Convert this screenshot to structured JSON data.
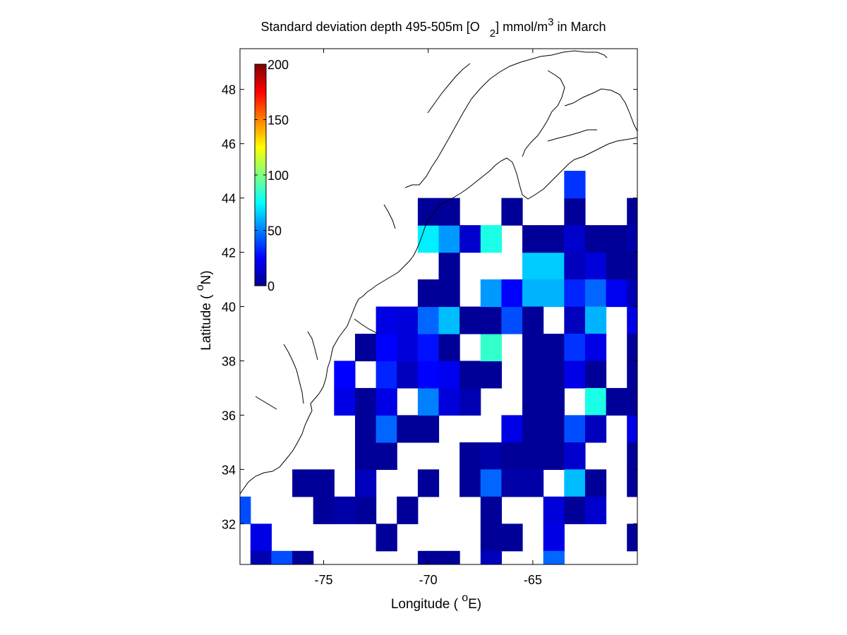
{
  "chart_data": {
    "type": "heatmap",
    "title_parts": {
      "pre": "Standard deviation depth 495-505m [O",
      "sub": "2",
      "mid": "] mmol/m",
      "sup": "3",
      "post": " in March"
    },
    "xlabel_parts": {
      "pre": "Longitude ( ",
      "sup": "o",
      "post": "E)"
    },
    "ylabel_parts": {
      "pre": "Latitude ( ",
      "sup": "o",
      "post": "N)"
    },
    "xlim": [
      -79,
      -60
    ],
    "ylim": [
      30.5,
      49.5
    ],
    "xticks": [
      -75,
      -70,
      -65
    ],
    "xtick_labels": [
      "-75",
      "-70",
      "-65"
    ],
    "yticks": [
      32,
      34,
      36,
      38,
      40,
      42,
      44,
      46,
      48
    ],
    "ytick_labels": [
      "32",
      "34",
      "36",
      "38",
      "40",
      "42",
      "44",
      "46",
      "48"
    ],
    "grid": false,
    "colorbar": {
      "colormap": "jet",
      "range": [
        0,
        200
      ],
      "ticks": [
        0,
        50,
        100,
        150,
        200
      ],
      "tick_labels": [
        "0",
        "50",
        "100",
        "150",
        "200"
      ],
      "placement": "top-left"
    },
    "cell_size_deg": 1,
    "cells": [
      [
        -79,
        32.5,
        40
      ],
      [
        -78,
        31.5,
        20
      ],
      [
        -78,
        30.5,
        10
      ],
      [
        -77,
        30.5,
        40
      ],
      [
        -76,
        30.5,
        5
      ],
      [
        -76,
        33.5,
        5
      ],
      [
        -75,
        33.5,
        5
      ],
      [
        -75,
        32.5,
        5
      ],
      [
        -74,
        32.5,
        8
      ],
      [
        -73,
        32.5,
        5
      ],
      [
        -73,
        33.5,
        12
      ],
      [
        -72,
        31.5,
        5
      ],
      [
        -71,
        32.5,
        5
      ],
      [
        -73,
        34.5,
        5
      ],
      [
        -72,
        34.5,
        5
      ],
      [
        -73,
        35.5,
        5
      ],
      [
        -72,
        35.5,
        45
      ],
      [
        -71,
        35.5,
        5
      ],
      [
        -70,
        35.5,
        5
      ],
      [
        -74,
        36.5,
        20
      ],
      [
        -73,
        36.5,
        5
      ],
      [
        -72,
        36.5,
        20
      ],
      [
        -70,
        36.5,
        50
      ],
      [
        -69,
        36.5,
        18
      ],
      [
        -68,
        36.5,
        10
      ],
      [
        -74,
        37.5,
        25
      ],
      [
        -72,
        37.5,
        32
      ],
      [
        -71,
        37.5,
        12
      ],
      [
        -70,
        37.5,
        25
      ],
      [
        -69,
        37.5,
        22
      ],
      [
        -68,
        37.5,
        5
      ],
      [
        -67,
        37.5,
        5
      ],
      [
        -73,
        38.5,
        5
      ],
      [
        -72,
        38.5,
        25
      ],
      [
        -71,
        38.5,
        18
      ],
      [
        -70,
        38.5,
        28
      ],
      [
        -69,
        38.5,
        5
      ],
      [
        -67,
        38.5,
        85
      ],
      [
        -72,
        39.5,
        20
      ],
      [
        -71,
        39.5,
        18
      ],
      [
        -70,
        39.5,
        45
      ],
      [
        -69,
        39.5,
        62
      ],
      [
        -68,
        39.5,
        5
      ],
      [
        -67,
        39.5,
        5
      ],
      [
        -66,
        39.5,
        40
      ],
      [
        -70,
        40.5,
        5
      ],
      [
        -69,
        40.5,
        5
      ],
      [
        -67,
        40.5,
        55
      ],
      [
        -66,
        40.5,
        25
      ],
      [
        -65,
        40.5,
        18
      ],
      [
        -69,
        41.5,
        5
      ],
      [
        -70,
        42.5,
        72
      ],
      [
        -69,
        42.5,
        55
      ],
      [
        -68,
        42.5,
        15
      ],
      [
        -67,
        42.5,
        80
      ],
      [
        -70,
        43.5,
        5
      ],
      [
        -69,
        43.5,
        5
      ],
      [
        -66,
        43.5,
        5
      ],
      [
        -65,
        41.5,
        65
      ],
      [
        -64,
        41.5,
        65
      ],
      [
        -63,
        41.5,
        12
      ],
      [
        -62,
        41.5,
        18
      ],
      [
        -61,
        41.5,
        5
      ],
      [
        -60,
        41.5,
        5
      ],
      [
        -65,
        40.5,
        60
      ],
      [
        -64,
        40.5,
        60
      ],
      [
        -63,
        40.5,
        32
      ],
      [
        -62,
        40.5,
        45
      ],
      [
        -61,
        40.5,
        22
      ],
      [
        -60,
        40.5,
        10
      ],
      [
        -65,
        42.5,
        5
      ],
      [
        -64,
        42.5,
        5
      ],
      [
        -63,
        42.5,
        15
      ],
      [
        -62,
        42.5,
        5
      ],
      [
        -61,
        42.5,
        5
      ],
      [
        -60,
        42.5,
        8
      ],
      [
        -63,
        43.5,
        5
      ],
      [
        -60,
        43.5,
        5
      ],
      [
        -63,
        44.5,
        35
      ],
      [
        -65,
        39.5,
        5
      ],
      [
        -63,
        39.5,
        12
      ],
      [
        -62,
        39.5,
        60
      ],
      [
        -60,
        39.5,
        20
      ],
      [
        -65,
        38.5,
        5
      ],
      [
        -64,
        38.5,
        5
      ],
      [
        -63,
        38.5,
        35
      ],
      [
        -62,
        38.5,
        20
      ],
      [
        -60,
        38.5,
        5
      ],
      [
        -65,
        37.5,
        5
      ],
      [
        -64,
        37.5,
        5
      ],
      [
        -63,
        37.5,
        20
      ],
      [
        -62,
        37.5,
        5
      ],
      [
        -60,
        37.5,
        5
      ],
      [
        -65,
        36.5,
        5
      ],
      [
        -64,
        36.5,
        5
      ],
      [
        -62,
        36.5,
        80
      ],
      [
        -61,
        36.5,
        5
      ],
      [
        -60,
        36.5,
        5
      ],
      [
        -66,
        35.5,
        20
      ],
      [
        -65,
        35.5,
        5
      ],
      [
        -64,
        35.5,
        5
      ],
      [
        -63,
        35.5,
        40
      ],
      [
        -62,
        35.5,
        12
      ],
      [
        -60,
        35.5,
        20
      ],
      [
        -68,
        34.5,
        5
      ],
      [
        -67,
        34.5,
        8
      ],
      [
        -66,
        34.5,
        5
      ],
      [
        -65,
        34.5,
        5
      ],
      [
        -64,
        34.5,
        5
      ],
      [
        -63,
        34.5,
        15
      ],
      [
        -60,
        34.5,
        5
      ],
      [
        -70,
        33.5,
        5
      ],
      [
        -68,
        33.5,
        5
      ],
      [
        -67,
        33.5,
        45
      ],
      [
        -66,
        33.5,
        8
      ],
      [
        -65,
        33.5,
        8
      ],
      [
        -63,
        33.5,
        62
      ],
      [
        -62,
        33.5,
        5
      ],
      [
        -60,
        33.5,
        5
      ],
      [
        -67,
        32.5,
        5
      ],
      [
        -64,
        32.5,
        18
      ],
      [
        -63,
        32.5,
        5
      ],
      [
        -62,
        32.5,
        15
      ],
      [
        -67,
        31.5,
        5
      ],
      [
        -66,
        31.5,
        5
      ],
      [
        -64,
        31.5,
        20
      ],
      [
        -60,
        31.5,
        5
      ],
      [
        -70,
        30.5,
        5
      ],
      [
        -69,
        30.5,
        5
      ],
      [
        -67,
        30.5,
        12
      ],
      [
        -64,
        30.5,
        45
      ]
    ]
  }
}
